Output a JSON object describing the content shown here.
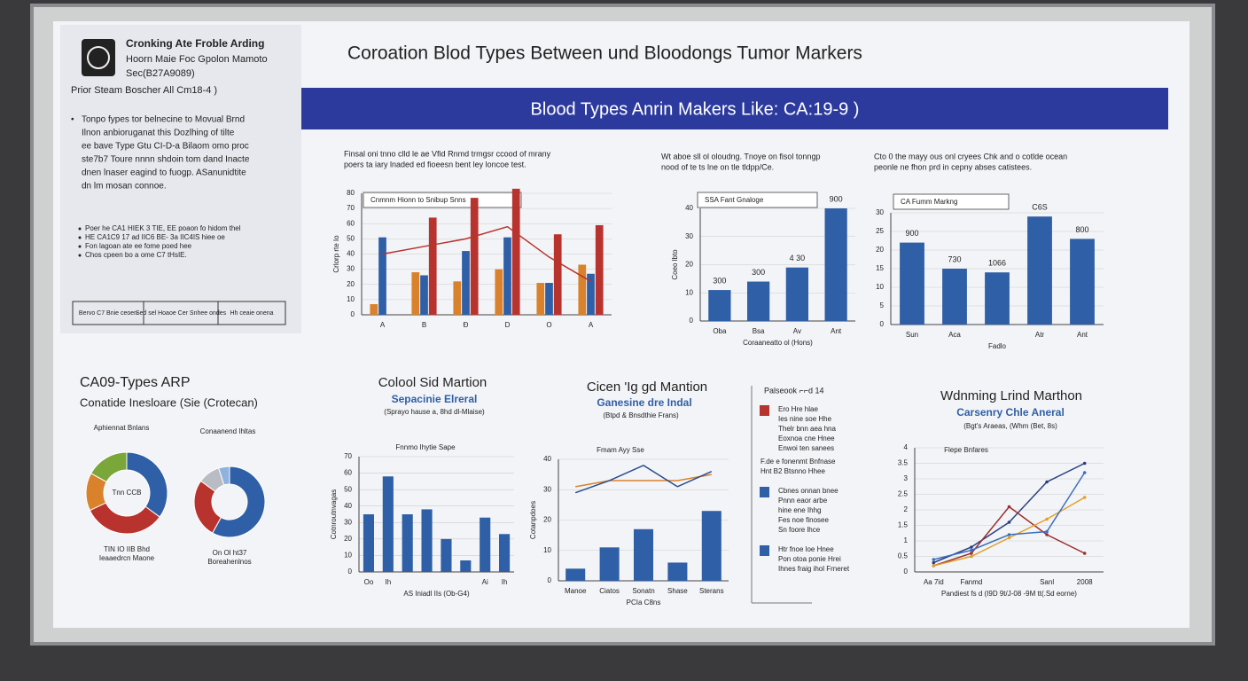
{
  "poster": {
    "sidebar": {
      "title_lines": [
        "Cronking Ate Froble Arding",
        "Hoorn Maie Foc Gpolon Mamoto",
        "Sec(B27A9089)"
      ],
      "subtitle": "Prior Steam Boscher All Cm18-4 )",
      "paragraph": [
        "Tonpo fypes tor belnecine to Movual Brnd",
        "Ilnon anbioruganat this Dozlhing of tilte",
        "ee bave Type Gtu CI-D-a Bilaom omo proc",
        "ste7b7 Toure nnnn shdoin tom dand Inacte",
        "dnen lnaser eagind to fuogp. ASanunidtite",
        "dn lm mosan connoe."
      ],
      "bullets": [
        "Poer he CA1 HIEK 3 TIE, EE poaon fo hidom thel",
        "HE CA1C9 17 ad IIC6 BE- 3a IIC4IS hiee oe",
        "Fon lagoan ate ee fome poed hee",
        "Chos cpeen bo a ome C7 tHsIE."
      ],
      "boxes": [
        "Bervo C7 Bnie ceoen",
        "Sed sel Hoaoe Cer Snhee ondes",
        "Hh ceaie onena"
      ]
    },
    "title": "Coroation Blod Types Between und Bloodongs Tumor Markers",
    "banner": "Blood Types Anrin Makers Like:  CA:19-9 )",
    "notes": [
      [
        "Finsal oni tnno clld le ae Vfid Rnmd trmgsr ccood of mrany",
        "poers ta iary lnaded ed fioeesn bent ley loncoe test."
      ],
      [
        "Wt aboe sll ol oloudng. Tnoye on fisol tonngp",
        "nood of te ts lne on tle tldpp/Ce."
      ],
      [
        "Cto 0 the mayy ous onl cryees Chk and o cotlde ocean",
        "peonle ne fhon prd in cepny abses catistees."
      ]
    ],
    "sections": {
      "left_heading": "CA09-Types ARP",
      "left_sub": "Conatide Inesloare (Sie (Crotecan)",
      "mid1_heading": "Colool Sid Martion",
      "mid1_sub": "Sepacinie Elreral",
      "mid1_note": "(Sprayo hause a, 8hd dl-Mlaise)",
      "mid2_heading": "Cicen 'Ig gd Mantion",
      "mid2_sub": "Ganesine dre Indal",
      "mid2_note": "(Btpd & Bnsdthie Frans)",
      "right_heading": "Wdnming Lrind Marthon",
      "right_sub": "Carsenry Chle Aneral",
      "right_note": "(Bgt's Araeas, (Whm (Bet, 8s)"
    },
    "legend_panel": {
      "title": "Palseook ⌐⌐d 14",
      "items": [
        {
          "color": "#b8322e",
          "lines": [
            "Ero Hre hlae",
            "Ies nine soe Hhe",
            "Thelr bnn aea hna",
            "Eoxnoa cne Hnee",
            "Enwoi ten sanees"
          ]
        },
        {
          "color": "#2f5fa6",
          "lines": [
            "Cbnes onnan bnee",
            "Pnnn eaor arbe",
            "hine ene Ihhg",
            "Fes noe finosee",
            "Sn foore lhce"
          ]
        },
        {
          "color": "#2f5fa6",
          "lines": [
            "Htr fnoe loe Hnee",
            "Pon otoa ponie Hrei",
            "Ihnes fraig ihol Frneret"
          ]
        }
      ],
      "mid_text": [
        "F.de e fonenmt Bnfnase",
        "Hnt B2 Btsnno Hhee"
      ]
    }
  },
  "chart_data": [
    {
      "type": "bar",
      "title": "Cnmnm Hionn to Snibup Snns",
      "categories": [
        "A",
        "B",
        "Ð",
        "D",
        "O",
        "A"
      ],
      "series": [
        {
          "color": "#d9822b",
          "values": [
            7,
            28,
            22,
            30,
            21,
            33
          ]
        },
        {
          "color": "#2f5fa6",
          "values": [
            51,
            26,
            42,
            51,
            21,
            27
          ]
        },
        {
          "color": "#b8322e",
          "values": [
            null,
            64,
            77,
            83,
            53,
            59
          ]
        }
      ],
      "lines": [
        {
          "color": "#b8322e",
          "values": [
            40,
            45,
            50,
            58,
            38,
            22
          ]
        }
      ],
      "ylim": [
        0,
        80
      ],
      "yticks": [
        0,
        10,
        20,
        30,
        40,
        50,
        60,
        70,
        80
      ],
      "ylabel": "Crlorp rte Io"
    },
    {
      "type": "bar",
      "title": "SSA Fant Gnaloge",
      "categories": [
        "Oba",
        "Bsa",
        "Av",
        "Ant"
      ],
      "series": [
        {
          "color": "#2f5fa6",
          "values": [
            11,
            14,
            19,
            40
          ]
        }
      ],
      "bar_labels": [
        "300",
        "300",
        "4 30",
        "900"
      ],
      "ylim": [
        0,
        40
      ],
      "yticks": [
        0,
        10,
        20,
        30,
        40
      ],
      "ylabel": "Coeo lbto",
      "xlabel": "Coraaneatto ol (Hons)"
    },
    {
      "type": "bar",
      "title": "CA Fumm Markng",
      "categories": [
        "Sun",
        "Aca",
        null,
        "Atr",
        "Ant"
      ],
      "series": [
        {
          "color": "#2f5fa6",
          "values": [
            22,
            15,
            14,
            29,
            23
          ]
        }
      ],
      "bar_labels": [
        "900",
        "730",
        "1066",
        "C6S",
        "800"
      ],
      "ylim": [
        0,
        30
      ],
      "yticks": [
        0,
        5,
        10,
        15,
        20,
        25,
        30
      ],
      "xlabel": "Fadlo"
    },
    {
      "type": "donut",
      "title": "Aphiennat Bnlans",
      "center": "Tnn CCB",
      "values": [
        35,
        33,
        15,
        17
      ],
      "colors": [
        "#2f5fa6",
        "#b8322e",
        "#d9822b",
        "#7aa63a"
      ],
      "caption": [
        "TIN IO IIB Bhd",
        "Ieaaedrcn Maone"
      ]
    },
    {
      "type": "donut",
      "title": "Conaanend Ihltas",
      "values": [
        58,
        27,
        10,
        5
      ],
      "colors": [
        "#2f5fa6",
        "#b8322e",
        "#b9bcc2",
        "#8fb3de"
      ],
      "caption": [
        "On Ol ht37",
        "Boreahenlnos"
      ]
    },
    {
      "type": "bar",
      "title": "Fnnmo Ihytie Sape",
      "categories": [
        "Oo",
        "Ih",
        null,
        null,
        null,
        null,
        "Ai",
        "Ih"
      ],
      "series": [
        {
          "color": "#2f5fa6",
          "values": [
            35,
            58,
            35,
            38,
            20,
            7,
            33,
            23
          ]
        }
      ],
      "ylim": [
        0,
        70
      ],
      "yticks": [
        0,
        10,
        20,
        30,
        40,
        50,
        60,
        70
      ],
      "ylabel": "Cotnroutnvagas",
      "xlabel": "AS Iniadl IIs (Ob-G4)"
    },
    {
      "type": "bar",
      "title": "Fmam Ayy Sse",
      "categories": [
        "Manoe",
        "Ciatos",
        "Sonatn",
        "Shase",
        "Sterans"
      ],
      "series": [
        {
          "color": "#2f5fa6",
          "values": [
            4,
            11,
            17,
            6,
            23
          ]
        }
      ],
      "lines": [
        {
          "color": "#d9822b",
          "values": [
            31,
            33,
            33,
            33,
            35
          ]
        },
        {
          "color": "#2a4d8f",
          "values": [
            29,
            33,
            38,
            31,
            36
          ]
        }
      ],
      "ylim": [
        0,
        40
      ],
      "yticks": [
        0,
        10,
        20,
        30,
        40
      ],
      "ylabel": "Cotanpdoes",
      "xlabel": "PCIa C8ns"
    },
    {
      "type": "line",
      "title": "Flepe Bnfares",
      "categories": [
        "Aa 7id",
        "Fanmd",
        null,
        "Sanl",
        "2008"
      ],
      "series": [
        {
          "color": "#2a3f80",
          "values": [
            0.3,
            0.8,
            1.6,
            2.9,
            3.5
          ]
        },
        {
          "color": "#9b2e2e",
          "values": [
            0.2,
            0.6,
            2.1,
            1.2,
            0.6
          ]
        },
        {
          "color": "#e0a02a",
          "values": [
            0.2,
            0.5,
            1.1,
            1.7,
            2.4
          ]
        },
        {
          "color": "#3b6fc0",
          "values": [
            0.4,
            0.7,
            1.2,
            1.3,
            3.2
          ]
        }
      ],
      "ylim": [
        0,
        4
      ],
      "yticks": [
        0,
        0.5,
        1,
        1.5,
        2,
        2.5,
        3,
        3.5,
        4
      ],
      "xlabel": "Pandiest fs d (I9D 9t/J-08 -9M tt(.Sd eorne)"
    }
  ]
}
